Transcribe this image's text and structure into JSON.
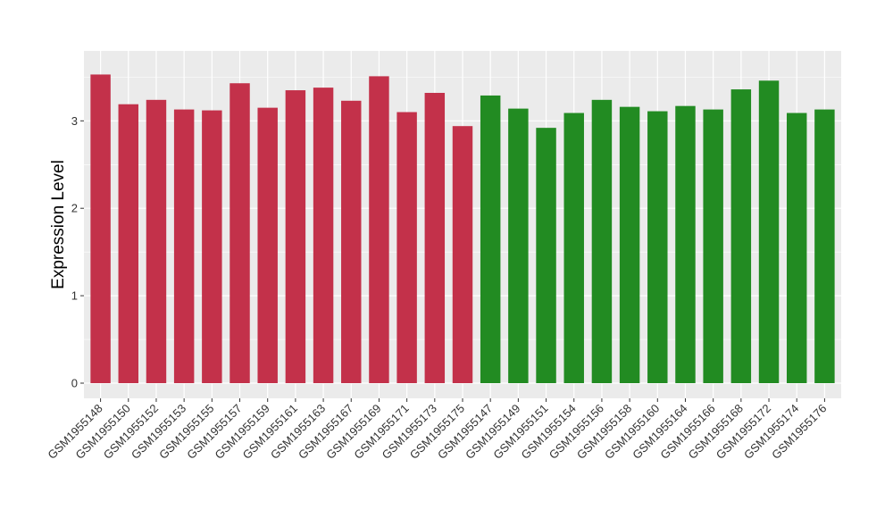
{
  "chart_data": {
    "type": "bar",
    "title": "",
    "xlabel": "",
    "ylabel": "Expression Level",
    "ylim": [
      0,
      3.8
    ],
    "yticks": [
      0,
      1,
      2,
      3
    ],
    "grid": true,
    "legend": "none",
    "colors": {
      "group_1": "#C3314A",
      "group_2": "#228B22",
      "panel_bg": "#EBEBEB",
      "grid": "#FFFFFF"
    },
    "categories": [
      "GSM1955148",
      "GSM1955150",
      "GSM1955152",
      "GSM1955153",
      "GSM1955155",
      "GSM1955157",
      "GSM1955159",
      "GSM1955161",
      "GSM1955163",
      "GSM1955167",
      "GSM1955169",
      "GSM1955171",
      "GSM1955173",
      "GSM1955175",
      "GSM1955147",
      "GSM1955149",
      "GSM1955151",
      "GSM1955154",
      "GSM1955156",
      "GSM1955158",
      "GSM1955160",
      "GSM1955164",
      "GSM1955166",
      "GSM1955168",
      "GSM1955172",
      "GSM1955174",
      "GSM1955176"
    ],
    "values": [
      3.53,
      3.19,
      3.24,
      3.13,
      3.12,
      3.43,
      3.15,
      3.35,
      3.38,
      3.23,
      3.51,
      3.1,
      3.32,
      2.94,
      3.29,
      3.14,
      2.92,
      3.09,
      3.24,
      3.16,
      3.11,
      3.17,
      3.13,
      3.36,
      3.46,
      3.09,
      3.13
    ],
    "groups": [
      1,
      1,
      1,
      1,
      1,
      1,
      1,
      1,
      1,
      1,
      1,
      1,
      1,
      1,
      2,
      2,
      2,
      2,
      2,
      2,
      2,
      2,
      2,
      2,
      2,
      2,
      2
    ]
  }
}
